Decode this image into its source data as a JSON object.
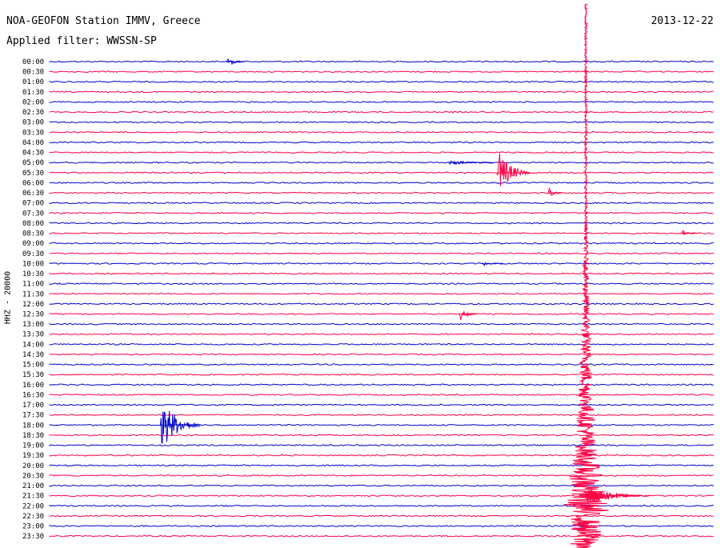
{
  "header": {
    "title": "NOA-GEOFON Station IMMV, Greece",
    "date": "2013-12-22",
    "filter": "Applied filter: WWSSN-SP"
  },
  "channel_label": "HHZ - 20000",
  "colors": {
    "even_rows": "#0000cc",
    "odd_rows": "#ff0044"
  },
  "chart_data": {
    "type": "line",
    "title": "NOA-GEOFON Station IMMV, Greece",
    "subtitle": "Applied filter: WWSSN-SP",
    "ylabel": "HHZ - 20000",
    "xlabel": "",
    "y_tick_labels": [
      "00:00",
      "00:30",
      "01:00",
      "01:30",
      "02:00",
      "02:30",
      "03:00",
      "03:30",
      "04:00",
      "04:30",
      "05:00",
      "05:30",
      "06:00",
      "06:30",
      "07:00",
      "07:30",
      "08:00",
      "08:30",
      "09:00",
      "09:30",
      "10:00",
      "10:30",
      "11:00",
      "11:30",
      "12:00",
      "12:30",
      "13:00",
      "13:30",
      "14:00",
      "14:30",
      "15:00",
      "15:30",
      "16:00",
      "16:30",
      "17:00",
      "17:30",
      "18:00",
      "18:30",
      "19:00",
      "19:30",
      "20:00",
      "20:30",
      "21:00",
      "21:30",
      "22:00",
      "22:30",
      "23:00",
      "23:30"
    ],
    "row_minutes": 30,
    "events": [
      {
        "row": "00:00",
        "start_min": 8.0,
        "duration_min": 0.8,
        "amplitude": 0.55
      },
      {
        "row": "05:00",
        "start_min": 18.0,
        "duration_min": 2.0,
        "amplitude": 0.3
      },
      {
        "row": "05:30",
        "start_min": 20.2,
        "duration_min": 1.5,
        "amplitude": 2.5
      },
      {
        "row": "06:30",
        "start_min": 22.5,
        "duration_min": 0.6,
        "amplitude": 0.8
      },
      {
        "row": "08:30",
        "start_min": 28.5,
        "duration_min": 0.8,
        "amplitude": 0.35
      },
      {
        "row": "10:00",
        "start_min": 19.5,
        "duration_min": 1.0,
        "amplitude": 0.3
      },
      {
        "row": "12:30",
        "start_min": 18.5,
        "duration_min": 0.8,
        "amplitude": 0.8
      },
      {
        "row": "18:00",
        "start_min": 5.0,
        "duration_min": 1.8,
        "amplitude": 3.0
      },
      {
        "row": "21:30",
        "start_min": 24.2,
        "duration_min": 2.5,
        "amplitude": 1.2
      },
      {
        "row": "22:00",
        "start_min": 24.2,
        "duration_min": 0.6,
        "amplitude": 0.3
      }
    ],
    "large_event": {
      "start_row": "00:00",
      "start_min": 24.2,
      "note": "teleseismic signal spanning rows"
    }
  }
}
